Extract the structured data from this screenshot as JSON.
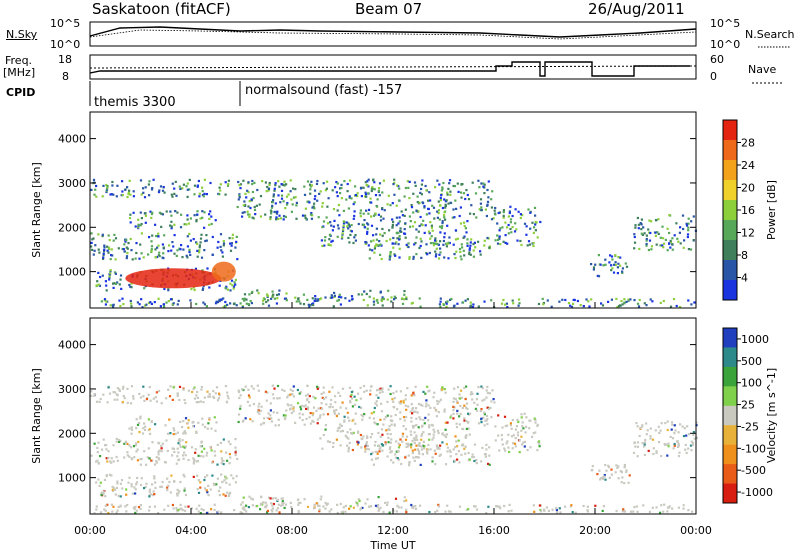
{
  "header": {
    "station": "Saskatoon (fitACF)",
    "beam": "Beam 07",
    "date": "26/Aug/2011"
  },
  "noise_panel": {
    "left_label": "N.Sky",
    "left_ticks": [
      "10^5",
      "10^0"
    ],
    "right_ticks": [
      "10^5",
      "10^0"
    ],
    "right_label": "N.Search"
  },
  "freq_panel": {
    "left_label_1": "Freq.",
    "left_label_2": "[MHz]",
    "left_ticks": [
      "18",
      "8"
    ],
    "right_ticks": [
      "60",
      "0"
    ],
    "right_label": "Nave"
  },
  "cpid": {
    "label": "CPID",
    "programs": [
      "themis 3300",
      "normalsound (fast) -157"
    ]
  },
  "colors": {
    "power_scale": [
      "#1a35e0",
      "#2a56a8",
      "#3f7f5c",
      "#58a85a",
      "#8ccf3a",
      "#f0d02a",
      "#f3a21c",
      "#ee6a1a",
      "#e52410"
    ],
    "velocity_scale": [
      "#1f3fbf",
      "#2c8a8a",
      "#3aa33a",
      "#7fd04a",
      "#c9c9c0",
      "#e8b23a",
      "#f0901c",
      "#e85c18",
      "#d81e10"
    ]
  },
  "chart_data": [
    {
      "type": "heatmap",
      "title": "Power",
      "ylabel": "Slant Range [km]",
      "y_ticks": [
        "1000",
        "2000",
        "3000",
        "4000"
      ],
      "ylim": [
        180,
        4600
      ],
      "xlim": [
        "00:00",
        "24:00"
      ],
      "colorbar_label": "Power [dB]",
      "colorbar_ticks": [
        "4",
        "8",
        "12",
        "16",
        "20",
        "24",
        "28"
      ],
      "colorbar_range": [
        0,
        32
      ]
    },
    {
      "type": "heatmap",
      "title": "Velocity",
      "ylabel": "Slant Range [km]",
      "y_ticks": [
        "1000",
        "2000",
        "3000",
        "4000"
      ],
      "ylim": [
        180,
        4600
      ],
      "xlim": [
        "00:00",
        "24:00"
      ],
      "colorbar_label": "Velocity [m s^-1]",
      "colorbar_ticks": [
        "1000",
        "500",
        "100",
        "25",
        "-25",
        "-100",
        "-500",
        "-1000"
      ]
    }
  ],
  "x_axis": {
    "ticks": [
      "00:00",
      "04:00",
      "08:00",
      "12:00",
      "16:00",
      "20:00",
      "00:00"
    ],
    "label": "Time UT"
  }
}
